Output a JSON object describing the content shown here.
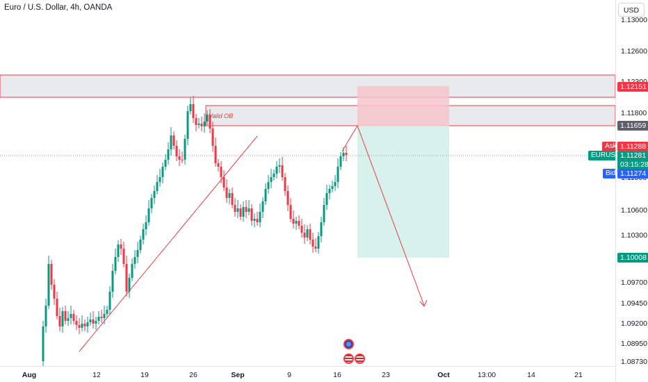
{
  "header": {
    "title": "Euro / U.S. Dollar, 4h, OANDA"
  },
  "price_axis": {
    "currency_label": "USD",
    "ticks": [
      "1.13000",
      "1.12600",
      "1.12300",
      "1.11800",
      "1.11500",
      "1.10600",
      "1.10300",
      "1.09700",
      "1.09450",
      "1.09200",
      "1.08950",
      "1.08730"
    ]
  },
  "time_axis": {
    "ticks": [
      {
        "label": "Aug",
        "bold": true
      },
      {
        "label": "12",
        "bold": false
      },
      {
        "label": "19",
        "bold": false
      },
      {
        "label": "26",
        "bold": false
      },
      {
        "label": "Sep",
        "bold": true
      },
      {
        "label": "9",
        "bold": false
      },
      {
        "label": "16",
        "bold": false
      },
      {
        "label": "23",
        "bold": false
      },
      {
        "label": "Oct",
        "bold": true
      },
      {
        "label": "13:00",
        "bold": false
      },
      {
        "label": "14",
        "bold": false
      },
      {
        "label": "21",
        "bold": false
      }
    ]
  },
  "price_tags": {
    "top_zone": "1.12151",
    "order_block": "1.11659",
    "current": "1.11281",
    "countdown": "03:15:28",
    "target": "1.10008",
    "ask": "1.11288",
    "bid": "1.11274"
  },
  "side_labels": {
    "ask": "Ask",
    "symbol": "EURUSD",
    "bid": "Bid"
  },
  "annotations": {
    "order_block_label": "Valid OB"
  },
  "colors": {
    "up": "#089981",
    "down": "#f23645",
    "stop_zone": "#f7c9cd",
    "target_zone": "#d7f1ec",
    "zone_gray": "#e9eaee",
    "drawing_red": "#f23645",
    "ask_tag": "#f23645",
    "bid_tag": "#2962ff",
    "order_block_tag": "#5d606b",
    "current_tag": "#089981"
  },
  "icons": {
    "event_icons": [
      "globe-icon",
      "us-flag-icon",
      "us-flag-icon"
    ]
  }
}
